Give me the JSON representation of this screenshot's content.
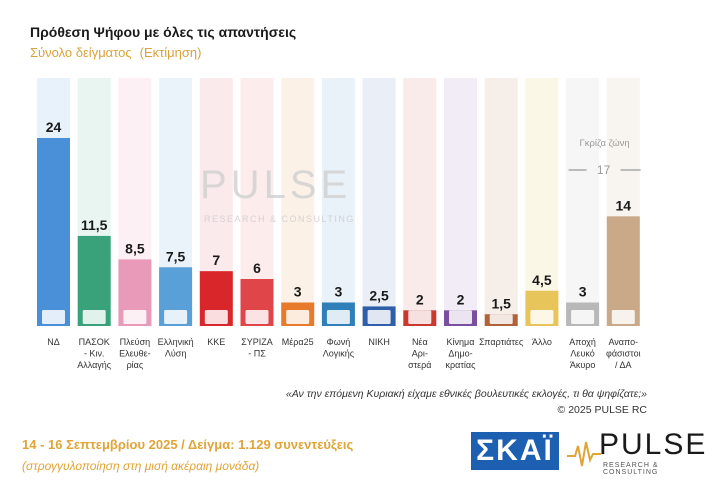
{
  "header": {
    "title": "Πρόθεση Ψήφου με όλες τις απαντήσεις",
    "subtitle": "Σύνολο δείγματος",
    "estimate": "(Εκτίμηση)"
  },
  "chart_data": {
    "type": "bar",
    "categories": [
      "ΝΔ",
      "ΠΑΣΟΚ - Κιν. Αλλαγής",
      "Πλεύση Ελευθε-ρίας",
      "Ελληνική Λύση",
      "ΚΚΕ",
      "ΣΥΡΙΖΑ - ΠΣ",
      "Μέρα25",
      "Φωνή Λογικής",
      "ΝΙΚΗ",
      "Νέα Αρι-στερά",
      "Κίνημα Δημο-κρατίας",
      "Σπαρτιάτες",
      "Άλλο",
      "Αποχή Λευκό Άκυρο",
      "Αναπο-φάσιστοι / ΔΑ"
    ],
    "category_lines": [
      [
        "ΝΔ"
      ],
      [
        "ΠΑΣΟΚ",
        "- Κιν.",
        "Αλλαγής"
      ],
      [
        "Πλεύση",
        "Ελευθε-",
        "ρίας"
      ],
      [
        "Ελληνική",
        "Λύση"
      ],
      [
        "ΚΚΕ"
      ],
      [
        "ΣΥΡΙΖΑ",
        "- ΠΣ"
      ],
      [
        "Μέρα25"
      ],
      [
        "Φωνή",
        "Λογικής"
      ],
      [
        "ΝΙΚΗ"
      ],
      [
        "Νέα",
        "Αρι-",
        "στερά"
      ],
      [
        "Κίνημα",
        "Δημο-",
        "κρατίας"
      ],
      [
        "Σπαρτιάτες"
      ],
      [
        "Άλλο"
      ],
      [
        "Αποχή",
        "Λευκό",
        "Άκυρο"
      ],
      [
        "Αναπο-",
        "φάσιστοι",
        "/ ΔΑ"
      ]
    ],
    "values": [
      24,
      11.5,
      8.5,
      7.5,
      7,
      6,
      3,
      3,
      2.5,
      2,
      2,
      1.5,
      4.5,
      3,
      14
    ],
    "value_labels": [
      "24",
      "11,5",
      "8,5",
      "7,5",
      "7",
      "6",
      "3",
      "3",
      "2,5",
      "2",
      "2",
      "1,5",
      "4,5",
      "3",
      "14"
    ],
    "bar_colors": [
      "#4a90d9",
      "#3aa27a",
      "#e89ab8",
      "#5aa0d8",
      "#d9262b",
      "#e0454a",
      "#e87b2b",
      "#2f7fb8",
      "#2f5fa8",
      "#c9392e",
      "#7a4fa0",
      "#b0623a",
      "#e8c55a",
      "#b8b8b8",
      "#caa988"
    ],
    "column_colors": [
      "#d6e8f7",
      "#d5ede3",
      "#f9e4ec",
      "#dbe9f6",
      "#f7d9da",
      "#f9dcdd",
      "#fae5d4",
      "#d7e7f2",
      "#d9e1f0",
      "#f4dad7",
      "#e7ddf0",
      "#efe0d7",
      "#f8f0d4",
      "#eeeeee",
      "#f3ece3"
    ],
    "gray_zone": {
      "label": "Γκρίζα ζώνη",
      "value": "17"
    },
    "ylim": [
      0,
      27
    ]
  },
  "watermark": {
    "name": "PULSE",
    "sub": "RESEARCH & CONSULTING"
  },
  "notes": {
    "question": "«Αν την επόμενη Κυριακή είχαμε εθνικές βουλευτικές εκλογές, τι θα ψηφίζατε;»",
    "copyright": "© 2025 PULSE RC"
  },
  "footer": {
    "dates_sample": "14 - 16 Σεπτεμβρίου 2025 / Δείγμα: 1.129 συνεντεύξεις",
    "rounding": "(στρογγυλοποίηση στη μισή ακέραιη μονάδα)"
  },
  "logos": {
    "skai": "ΣΚΑΪ",
    "pulse": "PULSE",
    "pulse_sub": "RESEARCH & CONSULTING"
  }
}
